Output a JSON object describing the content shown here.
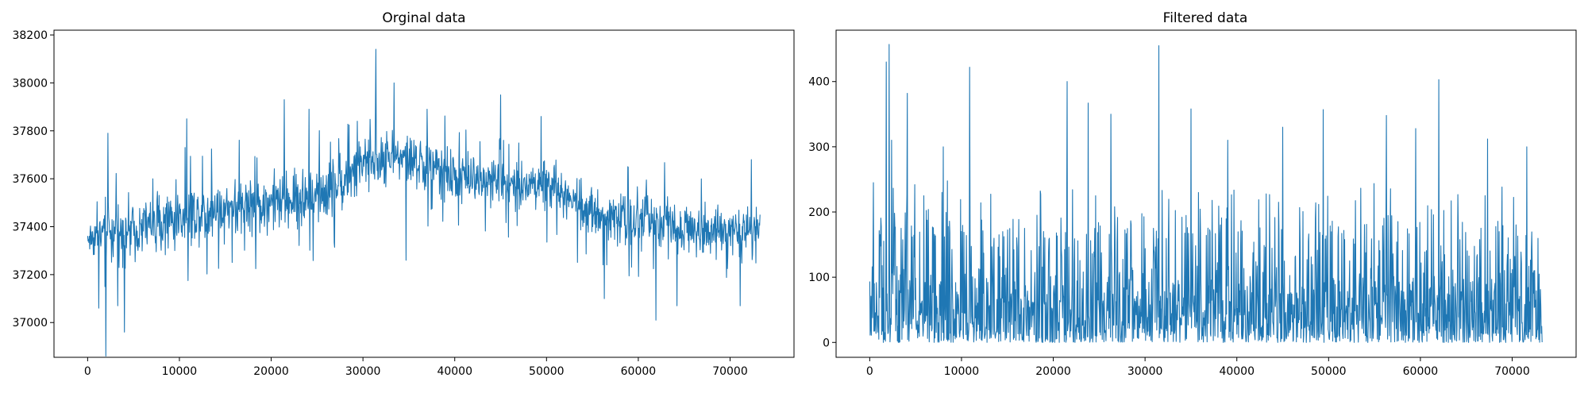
{
  "chart_data": [
    {
      "type": "line",
      "title": "Orginal data",
      "xlabel": "",
      "ylabel": "",
      "xlim": [
        -3665,
        76965
      ],
      "ylim": [
        36855,
        38220
      ],
      "xticks": [
        0,
        10000,
        20000,
        30000,
        40000,
        50000,
        60000,
        70000
      ],
      "xtick_labels": [
        "0",
        "10000",
        "20000",
        "30000",
        "40000",
        "50000",
        "60000",
        "70000"
      ],
      "yticks": [
        37000,
        37200,
        37400,
        37600,
        37800,
        38000,
        38200
      ],
      "ytick_labels": [
        "37000",
        "37200",
        "37400",
        "37600",
        "37800",
        "38000",
        "38200"
      ],
      "grid": false,
      "color": "#1f77b4",
      "n_points": 73300,
      "envelope": [
        {
          "x": 0,
          "low": 37250,
          "high": 37450
        },
        {
          "x": 2000,
          "low": 37200,
          "high": 37550
        },
        {
          "x": 5000,
          "low": 37220,
          "high": 37560
        },
        {
          "x": 10000,
          "low": 37260,
          "high": 37620
        },
        {
          "x": 15000,
          "low": 37300,
          "high": 37660
        },
        {
          "x": 20000,
          "low": 37320,
          "high": 37680
        },
        {
          "x": 25000,
          "low": 37350,
          "high": 37700
        },
        {
          "x": 30000,
          "low": 37470,
          "high": 37820
        },
        {
          "x": 33000,
          "low": 37540,
          "high": 37860
        },
        {
          "x": 36000,
          "low": 37500,
          "high": 37830
        },
        {
          "x": 40000,
          "low": 37450,
          "high": 37760
        },
        {
          "x": 45000,
          "low": 37430,
          "high": 37740
        },
        {
          "x": 50000,
          "low": 37420,
          "high": 37730
        },
        {
          "x": 55000,
          "low": 37300,
          "high": 37640
        },
        {
          "x": 60000,
          "low": 37260,
          "high": 37600
        },
        {
          "x": 65000,
          "low": 37240,
          "high": 37560
        },
        {
          "x": 70000,
          "low": 37230,
          "high": 37540
        },
        {
          "x": 73300,
          "low": 37230,
          "high": 37500
        }
      ],
      "spikes": [
        {
          "x": 1200,
          "y": 37060
        },
        {
          "x": 1900,
          "y": 37150
        },
        {
          "x": 2000,
          "y": 36860
        },
        {
          "x": 2200,
          "y": 37790
        },
        {
          "x": 3300,
          "y": 37070
        },
        {
          "x": 4000,
          "y": 36960
        },
        {
          "x": 10800,
          "y": 37850
        },
        {
          "x": 21400,
          "y": 37930
        },
        {
          "x": 24100,
          "y": 37890
        },
        {
          "x": 31400,
          "y": 38140
        },
        {
          "x": 33400,
          "y": 38000
        },
        {
          "x": 34700,
          "y": 37260
        },
        {
          "x": 37000,
          "y": 37890
        },
        {
          "x": 45000,
          "y": 37950
        },
        {
          "x": 49400,
          "y": 37860
        },
        {
          "x": 56300,
          "y": 37100
        },
        {
          "x": 61900,
          "y": 37010
        },
        {
          "x": 64200,
          "y": 37070
        },
        {
          "x": 71100,
          "y": 37070
        },
        {
          "x": 72300,
          "y": 37680
        }
      ]
    },
    {
      "type": "line",
      "title": "Filtered data",
      "xlabel": "",
      "ylabel": "",
      "xlim": [
        -3665,
        76965
      ],
      "ylim": [
        -22.8,
        478.8
      ],
      "xticks": [
        0,
        10000,
        20000,
        30000,
        40000,
        50000,
        60000,
        70000
      ],
      "xtick_labels": [
        "0",
        "10000",
        "20000",
        "30000",
        "40000",
        "50000",
        "60000",
        "70000"
      ],
      "yticks": [
        0,
        100,
        200,
        300,
        400
      ],
      "ytick_labels": [
        "0",
        "100",
        "200",
        "300",
        "400"
      ],
      "grid": false,
      "color": "#1f77b4",
      "n_points": 73300,
      "envelope": [
        {
          "x": 0,
          "low": 0,
          "high": 150
        },
        {
          "x": 2000,
          "low": 0,
          "high": 200
        },
        {
          "x": 10000,
          "low": 0,
          "high": 180
        },
        {
          "x": 20000,
          "low": 0,
          "high": 175
        },
        {
          "x": 30000,
          "low": 0,
          "high": 175
        },
        {
          "x": 40000,
          "low": 0,
          "high": 175
        },
        {
          "x": 50000,
          "low": 0,
          "high": 180
        },
        {
          "x": 60000,
          "low": 0,
          "high": 185
        },
        {
          "x": 70000,
          "low": 0,
          "high": 180
        },
        {
          "x": 73300,
          "low": 0,
          "high": 170
        }
      ],
      "spikes": [
        {
          "x": 400,
          "y": 245
        },
        {
          "x": 1800,
          "y": 430
        },
        {
          "x": 2100,
          "y": 457
        },
        {
          "x": 2400,
          "y": 310
        },
        {
          "x": 4100,
          "y": 382
        },
        {
          "x": 8000,
          "y": 300
        },
        {
          "x": 10900,
          "y": 422
        },
        {
          "x": 21500,
          "y": 400
        },
        {
          "x": 23800,
          "y": 367
        },
        {
          "x": 26300,
          "y": 350
        },
        {
          "x": 31500,
          "y": 455
        },
        {
          "x": 35000,
          "y": 358
        },
        {
          "x": 39000,
          "y": 310
        },
        {
          "x": 45000,
          "y": 330
        },
        {
          "x": 49400,
          "y": 357
        },
        {
          "x": 56300,
          "y": 348
        },
        {
          "x": 59500,
          "y": 328
        },
        {
          "x": 62000,
          "y": 403
        },
        {
          "x": 67300,
          "y": 312
        },
        {
          "x": 71600,
          "y": 300
        }
      ]
    }
  ]
}
